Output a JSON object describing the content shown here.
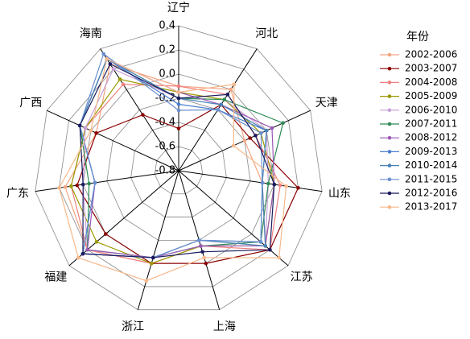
{
  "chart_data": {
    "type": "radar",
    "categories": [
      "辽宁",
      "河北",
      "天津",
      "山东",
      "江苏",
      "上海",
      "浙江",
      "福建",
      "广东",
      "广西",
      "海南"
    ],
    "rlim": [
      -0.8,
      0.4
    ],
    "rticks": [
      {
        "value": -0.8,
        "label": "-0.8"
      },
      {
        "value": -0.6,
        "label": "-0.6"
      },
      {
        "value": -0.4,
        "label": "-0.4"
      },
      {
        "value": -0.2,
        "label": "-0.2"
      },
      {
        "value": 0,
        "label": "0.0"
      },
      {
        "value": 0.2,
        "label": "0.2"
      },
      {
        "value": 0.4,
        "label": "0.4"
      }
    ],
    "legend_title": "年份",
    "legend_position": "right",
    "series": [
      {
        "name": "2002-2006",
        "color": "#f4a582",
        "values": [
          -0.1,
          0.0,
          -0.2,
          -0.1,
          0.15,
          -0.15,
          0.0,
          0.2,
          0.15,
          -0.05,
          0.25
        ]
      },
      {
        "name": "2003-2007",
        "color": "#8b0000",
        "values": [
          -0.45,
          -0.15,
          -0.15,
          0.2,
          0.2,
          0.0,
          0.0,
          0.0,
          0.05,
          -0.05,
          -0.25
        ]
      },
      {
        "name": "2004-2008",
        "color": "#f08080",
        "values": [
          -0.1,
          -0.05,
          -0.1,
          0.05,
          0.2,
          -0.15,
          0.0,
          0.2,
          0.1,
          0.05,
          0.05
        ]
      },
      {
        "name": "2005-2009",
        "color": "#9a9a00",
        "values": [
          -0.15,
          -0.1,
          -0.05,
          0.0,
          0.15,
          -0.15,
          0.0,
          0.1,
          0.1,
          0.05,
          0.1
        ]
      },
      {
        "name": "2006-2010",
        "color": "#c8a0d8",
        "values": [
          -0.2,
          -0.1,
          0.0,
          -0.05,
          0.15,
          -0.15,
          -0.05,
          0.2,
          0.0,
          0.05,
          0.2
        ]
      },
      {
        "name": "2007-2011",
        "color": "#2e8b57",
        "values": [
          -0.2,
          -0.1,
          0.15,
          -0.05,
          0.1,
          -0.15,
          -0.05,
          0.2,
          -0.05,
          0.1,
          0.3
        ]
      },
      {
        "name": "2008-2012",
        "color": "#9b59b6",
        "values": [
          -0.15,
          -0.15,
          0.05,
          0.0,
          0.15,
          -0.15,
          -0.05,
          0.2,
          -0.1,
          0.1,
          0.3
        ]
      },
      {
        "name": "2009-2013",
        "color": "#4a7fd0",
        "values": [
          -0.25,
          -0.2,
          0.0,
          -0.1,
          0.1,
          -0.2,
          -0.05,
          0.25,
          -0.1,
          0.1,
          0.3
        ]
      },
      {
        "name": "2010-2014",
        "color": "#4682b4",
        "values": [
          -0.2,
          -0.15,
          0.0,
          -0.1,
          0.15,
          -0.2,
          -0.05,
          0.25,
          -0.1,
          0.1,
          0.3
        ]
      },
      {
        "name": "2011-2015",
        "color": "#6a8fd0",
        "values": [
          -0.3,
          -0.2,
          -0.05,
          -0.1,
          0.1,
          -0.2,
          -0.05,
          0.25,
          -0.1,
          0.1,
          0.35
        ]
      },
      {
        "name": "2012-2016",
        "color": "#1a1a5e",
        "values": [
          -0.2,
          -0.05,
          -0.1,
          0.0,
          0.2,
          -0.1,
          -0.05,
          0.25,
          0.0,
          0.1,
          0.25
        ]
      },
      {
        "name": "2013-2017",
        "color": "#f5b88a",
        "values": [
          -0.15,
          0.05,
          -0.3,
          0.1,
          0.3,
          -0.05,
          0.15,
          0.3,
          0.2,
          0.0,
          0.3
        ]
      }
    ]
  }
}
